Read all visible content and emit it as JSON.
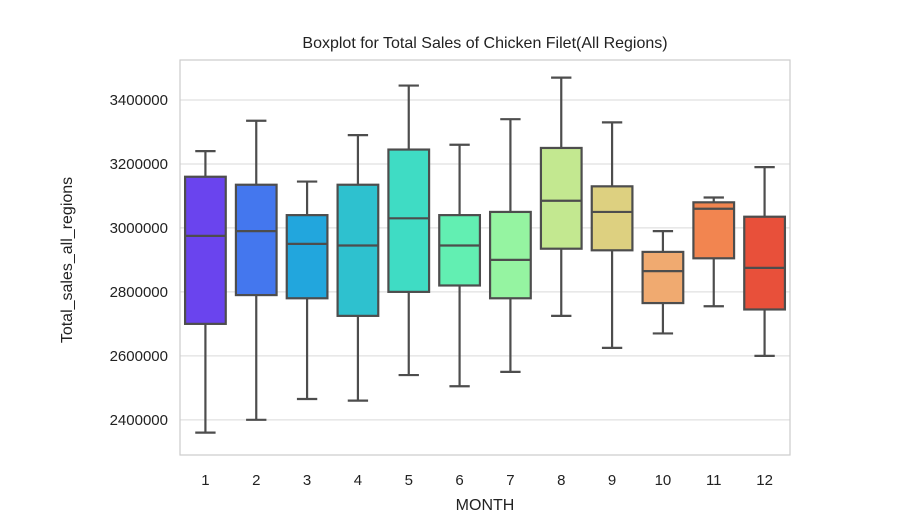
{
  "chart_data": {
    "type": "boxplot",
    "title": "Boxplot for Total Sales of Chicken Filet(All Regions)",
    "xlabel": "MONTH",
    "ylabel": "Total_sales_all_regions",
    "categories": [
      "1",
      "2",
      "3",
      "4",
      "5",
      "6",
      "7",
      "8",
      "9",
      "10",
      "11",
      "12"
    ],
    "y_ticks": [
      2400000,
      2600000,
      2800000,
      3000000,
      3200000,
      3400000
    ],
    "y_tick_labels": [
      "2400000",
      "2600000",
      "2800000",
      "3000000",
      "3200000",
      "3400000"
    ],
    "ylim": [
      2290000,
      3525000
    ],
    "grid": true,
    "boxes": [
      {
        "month": "1",
        "min": 2360000,
        "q1": 2700000,
        "median": 2975000,
        "q3": 3160000,
        "max": 3240000,
        "color": "#6a44ee"
      },
      {
        "month": "2",
        "min": 2400000,
        "q1": 2790000,
        "median": 2990000,
        "q3": 3135000,
        "max": 3335000,
        "color": "#4477ee"
      },
      {
        "month": "3",
        "min": 2465000,
        "q1": 2780000,
        "median": 2950000,
        "q3": 3040000,
        "max": 3145000,
        "color": "#22a6dd"
      },
      {
        "month": "4",
        "min": 2460000,
        "q1": 2725000,
        "median": 2945000,
        "q3": 3135000,
        "max": 3290000,
        "color": "#2ec1cf"
      },
      {
        "month": "5",
        "min": 2540000,
        "q1": 2800000,
        "median": 3030000,
        "q3": 3245000,
        "max": 3445000,
        "color": "#3fdcc4"
      },
      {
        "month": "6",
        "min": 2505000,
        "q1": 2820000,
        "median": 2945000,
        "q3": 3040000,
        "max": 3260000,
        "color": "#62efb2"
      },
      {
        "month": "7",
        "min": 2550000,
        "q1": 2780000,
        "median": 2900000,
        "q3": 3050000,
        "max": 3340000,
        "color": "#95f4a1"
      },
      {
        "month": "8",
        "min": 2725000,
        "q1": 2935000,
        "median": 3085000,
        "q3": 3250000,
        "max": 3470000,
        "color": "#c3e890"
      },
      {
        "month": "9",
        "min": 2625000,
        "q1": 2930000,
        "median": 3050000,
        "q3": 3130000,
        "max": 3330000,
        "color": "#ddd080"
      },
      {
        "month": "10",
        "min": 2670000,
        "q1": 2765000,
        "median": 2865000,
        "q3": 2925000,
        "max": 2990000,
        "color": "#f0aa70"
      },
      {
        "month": "11",
        "min": 2755000,
        "q1": 2905000,
        "median": 3060000,
        "q3": 3080000,
        "max": 3095000,
        "color": "#f28550"
      },
      {
        "month": "12",
        "min": 2600000,
        "q1": 2745000,
        "median": 2875000,
        "q3": 3035000,
        "max": 3190000,
        "color": "#e8503a"
      }
    ]
  }
}
